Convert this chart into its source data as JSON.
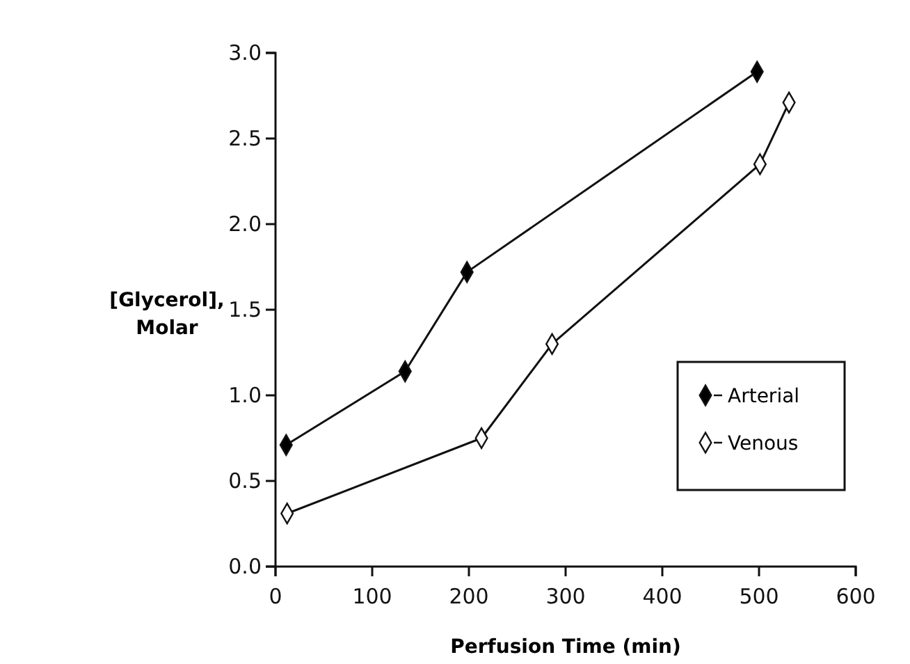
{
  "chart_data": {
    "type": "line",
    "xlabel": "Perfusion Time (min)",
    "ylabel": "[Glycerol],\nMolar",
    "xlim": [
      0,
      600
    ],
    "xticks": [
      0,
      100,
      200,
      300,
      400,
      500,
      600
    ],
    "ylim": [
      0,
      3
    ],
    "yticks": [
      {
        "value": 0,
        "label": "0.0"
      },
      {
        "value": 0.5,
        "label": "0.5"
      },
      {
        "value": 1,
        "label": "1.0"
      },
      {
        "value": 1.5,
        "label": "1.5"
      },
      {
        "value": 2,
        "label": "2.0"
      },
      {
        "value": 2.5,
        "label": "2.5"
      },
      {
        "value": 3,
        "label": "3.0"
      }
    ],
    "marker": "diamond",
    "legend": "bottom right",
    "grid": false,
    "series": [
      {
        "name": "Arterial",
        "color": "#000000",
        "x": [
          11,
          134,
          198,
          498
        ],
        "values": [
          0.71,
          1.14,
          1.72,
          2.89
        ]
      },
      {
        "name": "Venous",
        "color": "#ffffff",
        "x": [
          12,
          213,
          286,
          501,
          531
        ],
        "values": [
          0.31,
          0.75,
          1.3,
          2.35,
          2.71
        ]
      }
    ]
  }
}
